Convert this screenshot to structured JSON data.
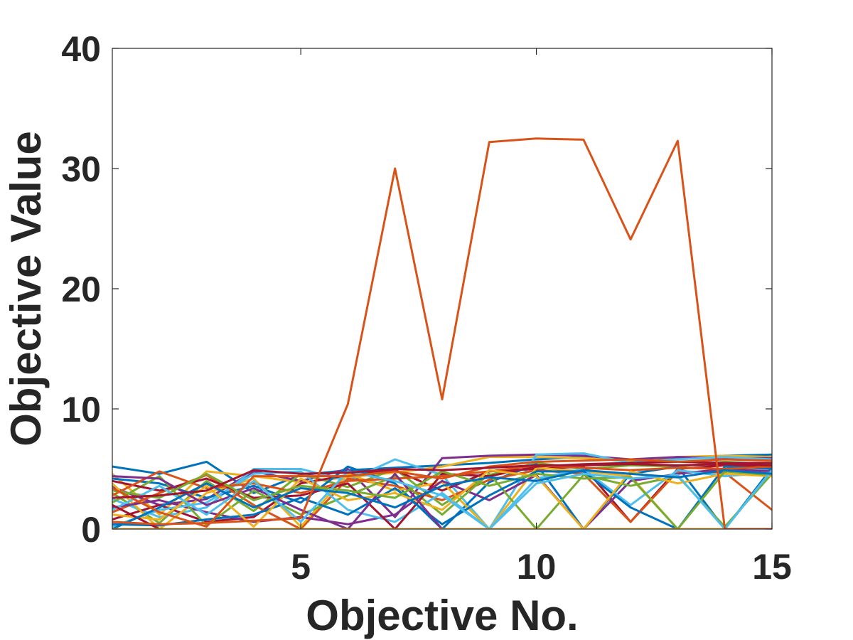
{
  "chart_data": {
    "type": "line",
    "title": "",
    "xlabel": "Objective No.",
    "ylabel": "Objective Value",
    "xlim": [
      1,
      15
    ],
    "ylim": [
      0,
      40
    ],
    "xticks": [
      5,
      10,
      15
    ],
    "yticks": [
      0,
      10,
      20,
      30,
      40
    ],
    "xtick_labels": [
      "5",
      "10",
      "15"
    ],
    "ytick_labels": [
      "0",
      "10",
      "20",
      "30",
      "40"
    ],
    "grid": false,
    "legend": "none",
    "x": [
      1,
      2,
      3,
      4,
      5,
      6,
      7,
      8,
      9,
      10,
      11,
      12,
      13,
      14,
      15
    ],
    "series": [
      {
        "color": "#D95319",
        "values": [
          0.6,
          0.4,
          0.5,
          0.7,
          0.9,
          10.4,
          30.0,
          10.8,
          32.2,
          32.5,
          32.4,
          24.1,
          32.3,
          0.0,
          0.0
        ]
      },
      {
        "color": "#0072BD",
        "values": [
          5.2,
          4.6,
          5.6,
          3.0,
          4.5,
          4.9,
          5.1,
          5.3,
          5.5,
          5.8,
          6.0,
          5.6,
          5.9,
          6.1,
          6.2
        ]
      },
      {
        "color": "#EDB120",
        "values": [
          4.6,
          1.2,
          4.8,
          4.4,
          3.9,
          4.3,
          4.7,
          5.2,
          6.0,
          6.0,
          5.9,
          5.7,
          6.0,
          6.1,
          6.0
        ]
      },
      {
        "color": "#7E2F8E",
        "values": [
          3.5,
          2.0,
          2.5,
          4.8,
          4.0,
          5.0,
          1.0,
          5.9,
          6.1,
          6.2,
          6.1,
          5.8,
          6.0,
          5.9,
          5.9
        ]
      },
      {
        "color": "#77AC30",
        "values": [
          3.0,
          0.5,
          4.0,
          1.5,
          4.6,
          3.5,
          5.0,
          2.0,
          4.5,
          5.5,
          5.0,
          5.3,
          5.2,
          5.6,
          5.4
        ]
      },
      {
        "color": "#4DBEEE",
        "values": [
          2.5,
          1.0,
          1.8,
          5.0,
          5.0,
          4.0,
          5.8,
          4.5,
          0.0,
          6.2,
          6.3,
          5.5,
          5.8,
          6.0,
          5.8
        ]
      },
      {
        "color": "#A2142F",
        "values": [
          0.8,
          2.0,
          0.6,
          1.0,
          3.8,
          4.5,
          4.9,
          3.2,
          4.8,
          5.0,
          5.2,
          0.6,
          5.0,
          5.3,
          5.1
        ]
      },
      {
        "color": "#0072BD",
        "values": [
          4.2,
          3.8,
          2.6,
          3.6,
          2.2,
          5.2,
          3.8,
          0.0,
          3.9,
          5.4,
          0.0,
          4.6,
          5.2,
          0.0,
          5.1
        ]
      },
      {
        "color": "#D95319",
        "values": [
          1.4,
          3.0,
          4.5,
          2.0,
          0.0,
          4.2,
          3.6,
          2.4,
          4.1,
          4.9,
          4.6,
          0.6,
          4.8,
          4.7,
          1.6
        ]
      },
      {
        "color": "#EDB120",
        "values": [
          3.8,
          0.0,
          3.0,
          4.2,
          0.2,
          4.6,
          3.2,
          3.9,
          0.0,
          5.1,
          4.8,
          4.4,
          0.0,
          0.0,
          4.9
        ]
      },
      {
        "color": "#7E2F8E",
        "values": [
          1.8,
          2.4,
          1.4,
          0.6,
          1.0,
          0.4,
          1.2,
          4.0,
          2.4,
          4.5,
          0.0,
          4.0,
          4.6,
          5.0,
          4.8
        ]
      },
      {
        "color": "#77AC30",
        "values": [
          2.2,
          4.4,
          0.3,
          3.2,
          1.2,
          2.8,
          4.4,
          1.2,
          4.6,
          0.0,
          4.5,
          3.6,
          4.4,
          0.2,
          4.6
        ]
      },
      {
        "color": "#4DBEEE",
        "values": [
          0.2,
          1.6,
          2.2,
          4.6,
          4.8,
          1.6,
          0.6,
          3.0,
          0.0,
          4.2,
          5.0,
          2.0,
          4.9,
          4.4,
          4.7
        ]
      },
      {
        "color": "#A2142F",
        "values": [
          4.0,
          3.2,
          4.2,
          2.6,
          2.8,
          3.8,
          0.0,
          4.6,
          4.4,
          5.2,
          5.4,
          5.5,
          5.6,
          5.5,
          5.5
        ]
      },
      {
        "color": "#0072BD",
        "values": [
          0.4,
          0.3,
          0.8,
          1.2,
          2.6,
          1.2,
          3.4,
          0.4,
          2.8,
          4.8,
          4.8,
          1.8,
          0.0,
          5.2,
          5.0
        ]
      },
      {
        "color": "#D95319",
        "values": [
          2.8,
          4.8,
          3.4,
          3.8,
          3.0,
          4.0,
          4.2,
          4.4,
          4.8,
          5.3,
          5.1,
          4.9,
          5.1,
          5.0,
          5.2
        ]
      },
      {
        "color": "#EDB120",
        "values": [
          1.2,
          0.8,
          3.6,
          0.2,
          4.2,
          2.4,
          3.0,
          1.6,
          4.9,
          4.4,
          0.0,
          4.8,
          3.8,
          4.6,
          4.4
        ]
      },
      {
        "color": "#7E2F8E",
        "values": [
          4.4,
          4.2,
          2.0,
          3.4,
          1.6,
          0.0,
          4.6,
          0.0,
          0.0,
          0.0,
          0.0,
          0.0,
          0.0,
          0.0,
          0.0
        ]
      },
      {
        "color": "#77AC30",
        "values": [
          3.2,
          2.6,
          4.6,
          2.4,
          3.6,
          3.2,
          2.6,
          4.8,
          3.6,
          4.6,
          4.2,
          4.3,
          0.0,
          4.8,
          4.5
        ]
      },
      {
        "color": "#4DBEEE",
        "values": [
          1.6,
          3.6,
          1.2,
          4.0,
          0.6,
          4.8,
          4.0,
          2.8,
          0.0,
          3.8,
          4.6,
          4.2,
          4.5,
          0.0,
          4.9
        ]
      },
      {
        "color": "#A2142F",
        "values": [
          2.0,
          0.0,
          0.0,
          0.0,
          0.0,
          0.0,
          0.0,
          0.0,
          0.0,
          0.0,
          0.0,
          0.0,
          0.0,
          0.0,
          0.0
        ]
      },
      {
        "color": "#0072BD",
        "values": [
          0.0,
          1.8,
          3.8,
          1.8,
          3.4,
          3.0,
          1.8,
          3.6,
          4.3,
          4.0,
          4.9,
          4.6,
          4.3,
          4.9,
          4.6
        ]
      },
      {
        "color": "#D95319",
        "values": [
          3.4,
          1.4,
          0.2,
          4.4,
          4.4,
          4.4,
          4.8,
          4.2,
          5.2,
          5.6,
          5.7,
          5.8,
          5.6,
          5.8,
          5.7
        ]
      },
      {
        "color": "#EDB120",
        "values": [
          0.0,
          0.0,
          0.0,
          0.0,
          0.0,
          0.0,
          0.0,
          0.0,
          0.0,
          0.0,
          0.0,
          0.0,
          0.0,
          0.0,
          0.0
        ]
      },
      {
        "color": "#A2142F",
        "values": [
          2.6,
          2.8,
          3.2,
          4.9,
          4.6,
          4.7,
          5.0,
          4.9,
          5.1,
          5.3,
          5.3,
          5.4,
          5.3,
          5.4,
          5.3
        ]
      }
    ]
  }
}
